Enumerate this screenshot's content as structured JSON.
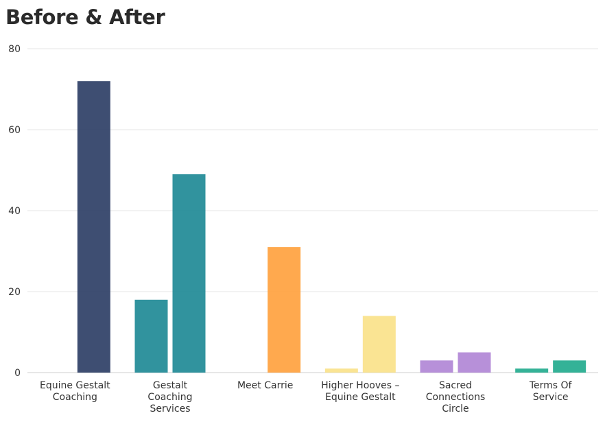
{
  "chart_data": {
    "type": "bar",
    "title": "Before & After",
    "xlabel": "",
    "ylabel": "",
    "ylim": [
      0,
      80
    ],
    "yticks": [
      0,
      20,
      40,
      60,
      80
    ],
    "grid": true,
    "legend": "none",
    "categories": [
      [
        "Equine Gestalt",
        "Coaching"
      ],
      [
        "Gestalt",
        "Coaching",
        "Services"
      ],
      [
        "Meet Carrie"
      ],
      [
        "Higher Hooves –",
        "Equine Gestalt"
      ],
      [
        "Sacred",
        "Connections",
        "Circle"
      ],
      [
        "Terms Of",
        "Service"
      ]
    ],
    "series": [
      {
        "values": [
          0,
          18,
          0,
          1,
          3,
          1
        ]
      },
      {
        "values": [
          72,
          49,
          31,
          14,
          5,
          3
        ]
      }
    ],
    "colors": [
      "#2e3f66",
      "#1f8a96",
      "#ffa23f",
      "#fae28a",
      "#b187d6",
      "#23ab8e"
    ]
  }
}
